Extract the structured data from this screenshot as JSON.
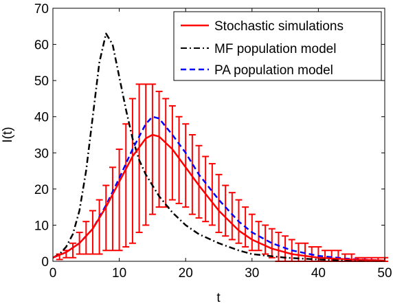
{
  "chart_data": {
    "type": "line",
    "xlabel": "t",
    "ylabel": "I(t)",
    "xlim": [
      0,
      50
    ],
    "ylim": [
      0,
      70
    ],
    "xticks": [
      0,
      10,
      20,
      30,
      40,
      50
    ],
    "yticks": [
      0,
      10,
      20,
      30,
      40,
      50,
      60,
      70
    ],
    "grid": false,
    "legend_position": "top-right",
    "series": [
      {
        "name": "Stochastic simulations",
        "style": "solid",
        "color": "#ff0000",
        "x": [
          0,
          2,
          4,
          6,
          8,
          10,
          12,
          14,
          15,
          16,
          18,
          20,
          22,
          25,
          28,
          30,
          33,
          36,
          40,
          45,
          50
        ],
        "y": [
          1,
          2.5,
          5,
          9,
          15,
          22,
          29,
          34,
          35,
          34.5,
          31,
          26,
          21,
          14,
          8.5,
          6,
          3.5,
          2,
          1,
          0.5,
          0.2
        ],
        "error_bars": {
          "x": [
            1,
            2,
            3,
            4,
            5,
            6,
            7,
            8,
            9,
            10,
            11,
            12,
            13,
            14,
            15,
            16,
            17,
            18,
            19,
            20,
            21,
            22,
            23,
            24,
            25,
            26,
            27,
            28,
            29,
            30,
            31,
            32,
            33,
            34,
            35,
            36,
            37,
            38,
            39,
            40,
            41,
            42,
            43,
            44,
            45,
            46,
            47,
            48,
            49,
            50
          ],
          "lower": [
            0.5,
            1,
            1,
            2,
            2,
            2,
            2,
            3,
            3,
            3,
            4,
            5,
            8,
            10,
            13,
            15,
            15,
            17,
            16,
            15,
            13,
            12,
            11,
            10,
            8,
            7,
            6,
            5,
            4,
            3,
            3,
            2,
            1,
            0,
            0,
            0,
            0,
            0,
            0,
            0,
            0,
            0,
            0,
            0,
            0,
            0,
            0,
            0,
            0,
            0
          ],
          "upper": [
            2,
            3,
            5,
            8,
            11,
            14,
            17,
            21,
            26,
            31,
            38,
            45,
            49,
            49,
            49,
            47,
            45,
            43,
            40,
            38,
            35,
            32,
            29,
            27,
            24,
            21,
            19,
            17,
            15,
            13,
            11,
            10,
            9,
            8,
            7,
            6,
            5,
            5,
            4,
            4,
            3,
            3,
            3,
            2,
            2,
            1,
            1,
            1,
            1,
            1
          ]
        }
      },
      {
        "name": "MF population model",
        "style": "dash-dot",
        "color": "#000000",
        "x": [
          0,
          1,
          2,
          3,
          4,
          5,
          6,
          7,
          8,
          9,
          10,
          11,
          12,
          13,
          14,
          15,
          16,
          18,
          20,
          22,
          25,
          28,
          30,
          35,
          40,
          45,
          50
        ],
        "y": [
          1,
          2,
          4,
          7.5,
          14,
          25,
          40,
          55,
          63,
          60,
          51,
          42,
          34,
          28,
          24,
          21,
          18,
          13.5,
          10,
          7.5,
          5,
          3,
          2,
          1,
          0.5,
          0.2,
          0.1
        ]
      },
      {
        "name": "PA population model",
        "style": "dashed",
        "color": "#0000ff",
        "x": [
          0,
          2,
          4,
          6,
          8,
          10,
          12,
          14,
          15,
          16,
          18,
          20,
          22,
          25,
          28,
          30,
          33,
          36,
          40,
          45,
          50
        ],
        "y": [
          1,
          2.5,
          5,
          9,
          15.5,
          23,
          31,
          38,
          40,
          39.5,
          35,
          30,
          24,
          17,
          11,
          8,
          5,
          3,
          1.5,
          0.6,
          0.2
        ]
      }
    ]
  }
}
